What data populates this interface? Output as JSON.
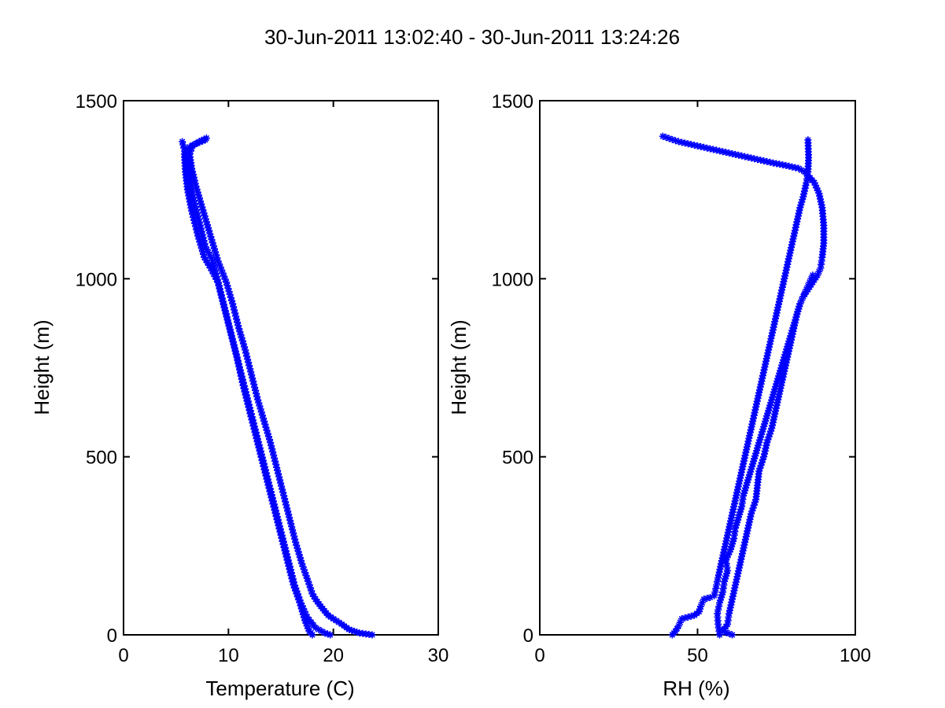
{
  "figure": {
    "title": "30-Jun-2011 13:02:40 - 30-Jun-2011 13:24:26"
  },
  "series_color": "#0000ff",
  "chart_data": [
    {
      "type": "scatter",
      "marker": "asterisk",
      "xlabel": "Temperature (C)",
      "ylabel": "Height (m)",
      "xlim": [
        0,
        30
      ],
      "ylim": [
        0,
        1500
      ],
      "xticks": [
        "0",
        "10",
        "20",
        "30"
      ],
      "yticks": [
        "0",
        "500",
        "1000",
        "1500"
      ],
      "grid": false,
      "series": [
        {
          "points": [
            [
              23.7,
              0
            ],
            [
              22.5,
              5
            ],
            [
              21.5,
              15
            ],
            [
              20.8,
              30
            ],
            [
              20,
              45
            ],
            [
              19.5,
              55
            ],
            [
              18.8,
              80
            ],
            [
              18.3,
              100
            ],
            [
              18,
              115
            ],
            [
              17.6,
              150
            ],
            [
              17,
              200
            ],
            [
              16.4,
              260
            ],
            [
              15.8,
              330
            ],
            [
              15.2,
              400
            ],
            [
              14.6,
              470
            ],
            [
              14,
              540
            ],
            [
              13.4,
              600
            ],
            [
              12.8,
              660
            ],
            [
              12.2,
              730
            ],
            [
              11.6,
              800
            ],
            [
              11,
              860
            ],
            [
              10.4,
              930
            ],
            [
              9.8,
              990
            ],
            [
              9,
              1050
            ],
            [
              8.4,
              1110
            ],
            [
              7.9,
              1160
            ],
            [
              7.4,
              1210
            ],
            [
              6.9,
              1260
            ],
            [
              6.5,
              1310
            ],
            [
              6.3,
              1350
            ],
            [
              6.6,
              1375
            ],
            [
              7.2,
              1385
            ],
            [
              7.9,
              1395
            ]
          ]
        },
        {
          "points": [
            [
              7.8,
              1390
            ],
            [
              7,
              1380
            ],
            [
              6.3,
              1370
            ],
            [
              5.8,
              1350
            ],
            [
              5.9,
              1300
            ],
            [
              6.1,
              1250
            ],
            [
              6.5,
              1190
            ],
            [
              7.1,
              1120
            ],
            [
              7.7,
              1060
            ],
            [
              8.3,
              1030
            ],
            [
              9,
              990
            ],
            [
              9.6,
              920
            ],
            [
              10.2,
              850
            ],
            [
              10.8,
              780
            ],
            [
              11.4,
              700
            ],
            [
              12,
              630
            ],
            [
              12.6,
              560
            ],
            [
              13.2,
              490
            ],
            [
              13.8,
              420
            ],
            [
              14.4,
              350
            ],
            [
              15,
              280
            ],
            [
              15.6,
              210
            ],
            [
              16.2,
              140
            ],
            [
              16.8,
              90
            ],
            [
              17.3,
              40
            ],
            [
              17.7,
              10
            ],
            [
              18,
              0
            ]
          ]
        },
        {
          "points": [
            [
              5.6,
              1385
            ],
            [
              6,
              1340
            ],
            [
              6.3,
              1280
            ],
            [
              6.7,
              1220
            ],
            [
              7.3,
              1150
            ],
            [
              7.8,
              1090
            ],
            [
              8.5,
              1050
            ],
            [
              9.1,
              980
            ],
            [
              9.7,
              910
            ],
            [
              10.3,
              840
            ],
            [
              10.9,
              770
            ],
            [
              11.5,
              700
            ],
            [
              12.1,
              630
            ],
            [
              12.7,
              560
            ],
            [
              13.3,
              490
            ],
            [
              13.9,
              420
            ],
            [
              14.5,
              350
            ],
            [
              15.1,
              280
            ],
            [
              15.7,
              210
            ],
            [
              16.3,
              140
            ],
            [
              16.9,
              90
            ],
            [
              17.5,
              50
            ],
            [
              18.3,
              20
            ],
            [
              19.2,
              5
            ],
            [
              19.7,
              0
            ]
          ]
        }
      ]
    },
    {
      "type": "scatter",
      "marker": "asterisk",
      "xlabel": "RH (%)",
      "ylabel": "Height (m)",
      "xlim": [
        0,
        100
      ],
      "ylim": [
        0,
        1500
      ],
      "xticks": [
        "0",
        "50",
        "100"
      ],
      "yticks": [
        "0",
        "500",
        "1000",
        "1500"
      ],
      "grid": false,
      "series": [
        {
          "points": [
            [
              39,
              1400
            ],
            [
              44,
              1385
            ],
            [
              49,
              1375
            ],
            [
              54,
              1365
            ],
            [
              59,
              1355
            ],
            [
              64,
              1345
            ],
            [
              69,
              1335
            ],
            [
              74,
              1325
            ],
            [
              78,
              1318
            ],
            [
              82,
              1310
            ],
            [
              84,
              1300
            ],
            [
              85,
              1290
            ],
            [
              87,
              1270
            ],
            [
              88.5,
              1240
            ],
            [
              89.5,
              1200
            ],
            [
              90,
              1150
            ],
            [
              90,
              1100
            ],
            [
              89.5,
              1060
            ],
            [
              89,
              1030
            ],
            [
              88,
              1010
            ],
            [
              86.5,
              990
            ],
            [
              85,
              970
            ],
            [
              83.5,
              950
            ],
            [
              82.5,
              930
            ],
            [
              81.5,
              900
            ],
            [
              80.5,
              860
            ],
            [
              79.5,
              820
            ],
            [
              78.5,
              780
            ],
            [
              77.5,
              740
            ],
            [
              76.5,
              700
            ],
            [
              75.5,
              660
            ],
            [
              74.5,
              620
            ],
            [
              73.5,
              580
            ],
            [
              72,
              540
            ],
            [
              71,
              500
            ],
            [
              69.5,
              460
            ],
            [
              69,
              420
            ],
            [
              68.5,
              380
            ],
            [
              67,
              340
            ],
            [
              66,
              300
            ],
            [
              65,
              260
            ],
            [
              64,
              220
            ],
            [
              63,
              180
            ],
            [
              62,
              140
            ],
            [
              61,
              100
            ],
            [
              60,
              60
            ],
            [
              59.5,
              30
            ],
            [
              58,
              10
            ],
            [
              61,
              0
            ]
          ]
        },
        {
          "points": [
            [
              85,
              1390
            ],
            [
              85.2,
              1340
            ],
            [
              85,
              1300
            ],
            [
              84.5,
              1270
            ],
            [
              83.5,
              1230
            ],
            [
              82.5,
              1200
            ],
            [
              81.5,
              1160
            ],
            [
              80.5,
              1120
            ],
            [
              79.5,
              1080
            ],
            [
              78.5,
              1040
            ],
            [
              77.5,
              1000
            ],
            [
              76.5,
              960
            ],
            [
              75.5,
              920
            ],
            [
              74.5,
              880
            ],
            [
              73.5,
              840
            ],
            [
              72.5,
              800
            ],
            [
              71.5,
              760
            ],
            [
              70.5,
              720
            ],
            [
              69.5,
              680
            ],
            [
              68.5,
              640
            ],
            [
              67.5,
              600
            ],
            [
              66.5,
              560
            ],
            [
              65.5,
              520
            ],
            [
              64.5,
              480
            ],
            [
              63.5,
              440
            ],
            [
              62.5,
              400
            ],
            [
              61.5,
              360
            ],
            [
              60.5,
              320
            ],
            [
              59.5,
              280
            ],
            [
              58.5,
              240
            ],
            [
              57.5,
              200
            ],
            [
              56.5,
              160
            ],
            [
              55.8,
              130
            ],
            [
              55.3,
              110
            ],
            [
              54,
              105
            ],
            [
              52,
              100
            ],
            [
              51,
              80
            ],
            [
              50.5,
              65
            ],
            [
              49,
              55
            ],
            [
              47,
              50
            ],
            [
              45,
              45
            ],
            [
              44,
              25
            ],
            [
              43,
              10
            ],
            [
              42,
              0
            ]
          ]
        },
        {
          "points": [
            [
              57,
              0
            ],
            [
              56.5,
              30
            ],
            [
              56.3,
              60
            ],
            [
              57,
              90
            ],
            [
              58,
              120
            ],
            [
              58.5,
              150
            ],
            [
              59.5,
              180
            ],
            [
              59,
              210
            ],
            [
              60.5,
              240
            ],
            [
              61.5,
              270
            ],
            [
              62,
              300
            ],
            [
              63,
              330
            ],
            [
              64,
              360
            ],
            [
              64.5,
              390
            ],
            [
              65.5,
              420
            ],
            [
              66.5,
              450
            ],
            [
              67.5,
              480
            ],
            [
              68.5,
              510
            ],
            [
              69.5,
              540
            ],
            [
              70.5,
              570
            ],
            [
              71.5,
              600
            ],
            [
              72.5,
              630
            ],
            [
              73.5,
              660
            ],
            [
              74.5,
              690
            ],
            [
              75.5,
              720
            ],
            [
              76.5,
              750
            ],
            [
              77.5,
              780
            ],
            [
              78.5,
              810
            ],
            [
              79.5,
              840
            ],
            [
              80.5,
              870
            ],
            [
              81.5,
              900
            ],
            [
              82.5,
              930
            ],
            [
              83.5,
              950
            ],
            [
              84.5,
              970
            ],
            [
              85.5,
              990
            ],
            [
              86.5,
              1010
            ]
          ]
        }
      ]
    }
  ]
}
